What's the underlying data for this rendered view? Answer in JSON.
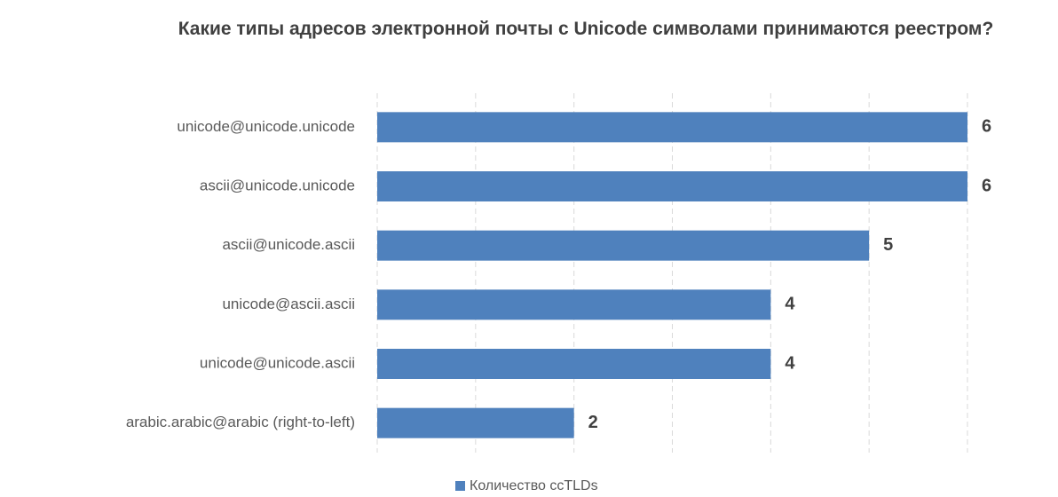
{
  "chart_data": {
    "type": "bar",
    "orientation": "horizontal",
    "title": "Какие типы адресов электронной почты с Unicode символами принимаются реестром?",
    "categories": [
      "unicode@unicode.unicode",
      "ascii@unicode.unicode",
      "ascii@unicode.ascii",
      "unicode@ascii.ascii",
      "unicode@unicode.ascii",
      "arabic.arabic@arabic (right-to-left)"
    ],
    "series": [
      {
        "name": "Количество ccTLDs",
        "color": "#4f81bd",
        "values": [
          6,
          6,
          5,
          4,
          4,
          2
        ]
      }
    ],
    "xlim": [
      0,
      6
    ],
    "xticks": [
      0,
      1,
      2,
      3,
      4,
      5,
      6
    ],
    "grid": true,
    "legend": "bottom"
  }
}
